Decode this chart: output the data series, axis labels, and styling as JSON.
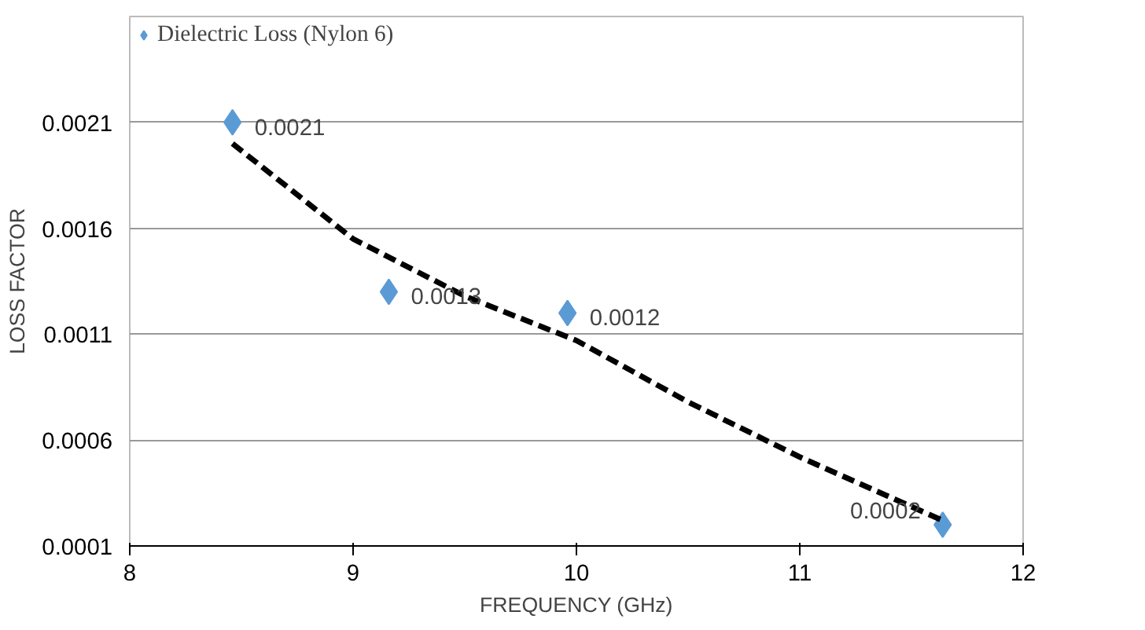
{
  "chart_data": {
    "type": "scatter",
    "xlabel": "FREQUENCY (GHz)",
    "ylabel": "LOSS FACTOR",
    "xlim": [
      8,
      12
    ],
    "xticks": [
      8,
      9,
      10,
      11,
      12
    ],
    "ylim": [
      0.0001,
      0.0026
    ],
    "yticks": [
      {
        "value": 0.0001,
        "label": "0.0001"
      },
      {
        "value": 0.0006,
        "label": "0.0006"
      },
      {
        "value": 0.0011,
        "label": "0.0011"
      },
      {
        "value": 0.0016,
        "label": "0.0016"
      },
      {
        "value": 0.0021,
        "label": "0.0021"
      }
    ],
    "grid": "y",
    "legend": "top",
    "marker": "diamond",
    "series": [
      {
        "name": "Dielectric Loss (Nylon 6)",
        "color": "#5b9bd5",
        "x": [
          8.46,
          9.16,
          9.96,
          11.64
        ],
        "values": [
          0.0021,
          0.0013,
          0.0012,
          0.0002
        ],
        "value_labels": [
          "0.0021",
          "0.0013",
          "0.0012",
          "0.0002"
        ]
      },
      {
        "type": "line",
        "marker": "none",
        "line_style": "dashed",
        "color": "#000000",
        "x": [
          8.46,
          9.0,
          9.5,
          10.0,
          10.5,
          11.0,
          11.64
        ],
        "values": [
          0.002,
          0.00155,
          0.00128,
          0.00107,
          0.00078,
          0.00052,
          0.00022
        ]
      }
    ]
  }
}
